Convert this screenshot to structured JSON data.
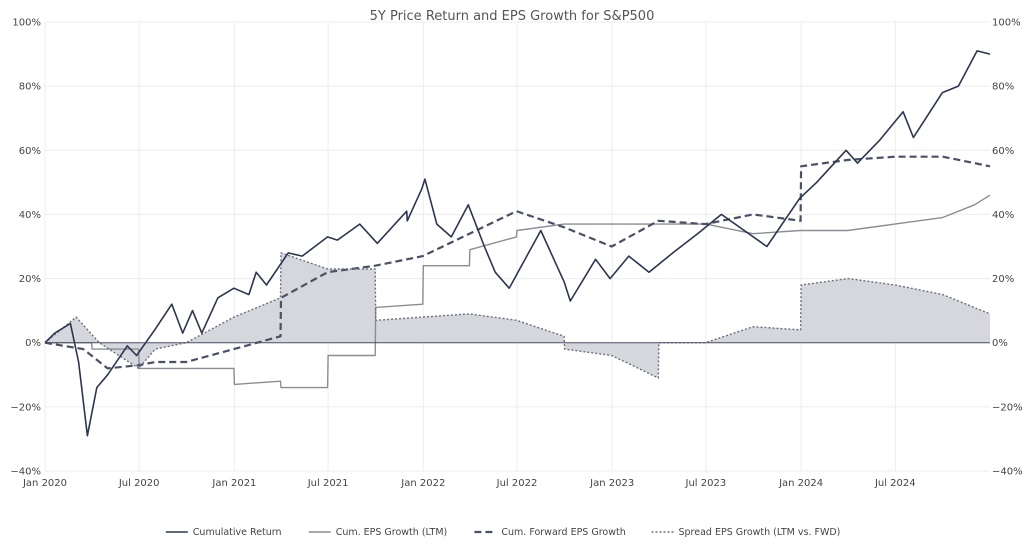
{
  "chart_data": {
    "type": "line",
    "title": "5Y Price Return and EPS Growth for S&P500",
    "xlabel": "",
    "ylabel": "",
    "x_tick_labels": [
      "Jan 2020",
      "Jul 2020",
      "Jan 2021",
      "Jul 2021",
      "Jan 2022",
      "Jul 2022",
      "Jan 2023",
      "Jul 2023",
      "Jan 2024",
      "Jul 2024"
    ],
    "x_tick_dates": [
      "2020-01-01",
      "2020-07-01",
      "2021-01-01",
      "2021-07-01",
      "2022-01-01",
      "2022-07-01",
      "2023-01-01",
      "2023-07-01",
      "2024-01-01",
      "2024-07-01"
    ],
    "xlim": [
      "2020-01-01",
      "2024-12-31"
    ],
    "y_tick_labels": [
      "100%",
      "80%",
      "60%",
      "40%",
      "20%",
      "0%",
      "−20%",
      "−40%"
    ],
    "y_ticks": [
      100,
      80,
      60,
      40,
      20,
      0,
      -20,
      -40
    ],
    "ylim": [
      -40,
      100
    ],
    "y_unit": "%",
    "grid": true,
    "legend_position": "bottom",
    "series": [
      {
        "name": "Cumulative Return",
        "style": "solid",
        "color": "#2c3650",
        "points": [
          [
            "2020-01-01",
            0
          ],
          [
            "2020-01-20",
            3
          ],
          [
            "2020-02-19",
            6
          ],
          [
            "2020-03-06",
            -6
          ],
          [
            "2020-03-23",
            -29
          ],
          [
            "2020-04-10",
            -14
          ],
          [
            "2020-05-01",
            -10
          ],
          [
            "2020-06-08",
            -1
          ],
          [
            "2020-06-26",
            -4
          ],
          [
            "2020-07-31",
            4
          ],
          [
            "2020-09-02",
            12
          ],
          [
            "2020-09-23",
            3
          ],
          [
            "2020-10-12",
            10
          ],
          [
            "2020-10-30",
            3
          ],
          [
            "2020-11-30",
            14
          ],
          [
            "2020-12-31",
            17
          ],
          [
            "2021-01-29",
            15
          ],
          [
            "2021-02-12",
            22
          ],
          [
            "2021-03-04",
            18
          ],
          [
            "2021-04-15",
            28
          ],
          [
            "2021-05-12",
            27
          ],
          [
            "2021-06-30",
            33
          ],
          [
            "2021-07-19",
            32
          ],
          [
            "2021-08-31",
            37
          ],
          [
            "2021-10-04",
            31
          ],
          [
            "2021-11-30",
            41
          ],
          [
            "2021-12-01",
            38
          ],
          [
            "2021-12-29",
            48
          ],
          [
            "2022-01-04",
            51
          ],
          [
            "2022-01-27",
            37
          ],
          [
            "2022-02-24",
            33
          ],
          [
            "2022-03-29",
            43
          ],
          [
            "2022-04-29",
            30
          ],
          [
            "2022-05-20",
            22
          ],
          [
            "2022-06-16",
            17
          ],
          [
            "2022-08-16",
            35
          ],
          [
            "2022-09-30",
            19
          ],
          [
            "2022-10-12",
            13
          ],
          [
            "2022-11-30",
            26
          ],
          [
            "2022-12-28",
            20
          ],
          [
            "2023-02-02",
            27
          ],
          [
            "2023-03-13",
            22
          ],
          [
            "2023-04-28",
            28
          ],
          [
            "2023-06-15",
            34
          ],
          [
            "2023-07-31",
            40
          ],
          [
            "2023-10-27",
            30
          ],
          [
            "2023-12-29",
            45
          ],
          [
            "2024-01-31",
            50
          ],
          [
            "2024-03-28",
            60
          ],
          [
            "2024-04-19",
            56
          ],
          [
            "2024-05-31",
            63
          ],
          [
            "2024-07-16",
            72
          ],
          [
            "2024-08-05",
            64
          ],
          [
            "2024-09-30",
            78
          ],
          [
            "2024-10-31",
            80
          ],
          [
            "2024-12-06",
            91
          ],
          [
            "2024-12-31",
            90
          ]
        ]
      },
      {
        "name": "Cum. EPS Growth (LTM)",
        "style": "solid",
        "color": "#8a8d96",
        "points": [
          [
            "2020-01-01",
            0
          ],
          [
            "2020-03-31",
            0
          ],
          [
            "2020-04-01",
            -2
          ],
          [
            "2020-06-30",
            -2
          ],
          [
            "2020-07-01",
            -8
          ],
          [
            "2020-09-30",
            -8
          ],
          [
            "2020-10-01",
            -8
          ],
          [
            "2020-12-31",
            -8
          ],
          [
            "2021-01-01",
            -13
          ],
          [
            "2021-03-31",
            -12
          ],
          [
            "2021-04-01",
            -14
          ],
          [
            "2021-06-30",
            -14
          ],
          [
            "2021-07-01",
            -4
          ],
          [
            "2021-09-30",
            -4
          ],
          [
            "2021-10-01",
            11
          ],
          [
            "2021-12-31",
            12
          ],
          [
            "2022-01-01",
            24
          ],
          [
            "2022-03-31",
            24
          ],
          [
            "2022-04-01",
            29
          ],
          [
            "2022-06-30",
            33
          ],
          [
            "2022-07-01",
            35
          ],
          [
            "2022-09-30",
            37
          ],
          [
            "2022-10-01",
            37
          ],
          [
            "2022-12-31",
            37
          ],
          [
            "2023-01-01",
            37
          ],
          [
            "2023-07-01",
            37
          ],
          [
            "2023-09-30",
            34
          ],
          [
            "2023-12-31",
            35
          ],
          [
            "2024-03-31",
            35
          ],
          [
            "2024-06-30",
            37
          ],
          [
            "2024-09-30",
            39
          ],
          [
            "2024-12-01",
            43
          ],
          [
            "2024-12-31",
            46
          ]
        ]
      },
      {
        "name": "Cum. Forward EPS Growth",
        "style": "dashed",
        "color": "#4a5066",
        "points": [
          [
            "2020-01-01",
            0
          ],
          [
            "2020-03-15",
            -2
          ],
          [
            "2020-05-01",
            -8
          ],
          [
            "2020-06-30",
            -7
          ],
          [
            "2020-08-01",
            -6
          ],
          [
            "2020-09-30",
            -6
          ],
          [
            "2020-12-31",
            -2
          ],
          [
            "2021-03-31",
            2
          ],
          [
            "2021-04-01",
            14
          ],
          [
            "2021-06-30",
            22
          ],
          [
            "2021-09-30",
            24
          ],
          [
            "2021-12-31",
            27
          ],
          [
            "2022-03-31",
            34
          ],
          [
            "2022-06-30",
            41
          ],
          [
            "2022-09-30",
            36
          ],
          [
            "2022-12-31",
            30
          ],
          [
            "2023-03-31",
            38
          ],
          [
            "2023-06-30",
            37
          ],
          [
            "2023-09-30",
            40
          ],
          [
            "2023-12-31",
            38
          ],
          [
            "2024-01-01",
            55
          ],
          [
            "2024-04-01",
            57
          ],
          [
            "2024-07-01",
            58
          ],
          [
            "2024-10-01",
            58
          ],
          [
            "2024-12-31",
            55
          ]
        ]
      },
      {
        "name": "Spread EPS Growth (LTM vs. FWD)",
        "style": "dotted",
        "color": "#6a6f80",
        "fill": "#d6d7dc",
        "points": [
          [
            "2020-01-01",
            0
          ],
          [
            "2020-03-01",
            8
          ],
          [
            "2020-04-15",
            0
          ],
          [
            "2020-06-30",
            -8
          ],
          [
            "2020-08-01",
            -2
          ],
          [
            "2020-09-30",
            0
          ],
          [
            "2020-12-31",
            8
          ],
          [
            "2021-03-31",
            14
          ],
          [
            "2021-04-01",
            28
          ],
          [
            "2021-06-30",
            23
          ],
          [
            "2021-09-30",
            23
          ],
          [
            "2021-10-01",
            7
          ],
          [
            "2021-12-31",
            8
          ],
          [
            "2022-03-31",
            9
          ],
          [
            "2022-06-30",
            7
          ],
          [
            "2022-09-30",
            2
          ],
          [
            "2022-10-01",
            -2
          ],
          [
            "2022-12-31",
            -4
          ],
          [
            "2023-03-31",
            -11
          ],
          [
            "2023-04-01",
            0
          ],
          [
            "2023-06-30",
            0
          ],
          [
            "2023-09-30",
            5
          ],
          [
            "2023-12-31",
            4
          ],
          [
            "2024-01-01",
            18
          ],
          [
            "2024-04-01",
            20
          ],
          [
            "2024-07-01",
            18
          ],
          [
            "2024-10-01",
            15
          ],
          [
            "2024-12-31",
            9
          ]
        ]
      }
    ]
  }
}
